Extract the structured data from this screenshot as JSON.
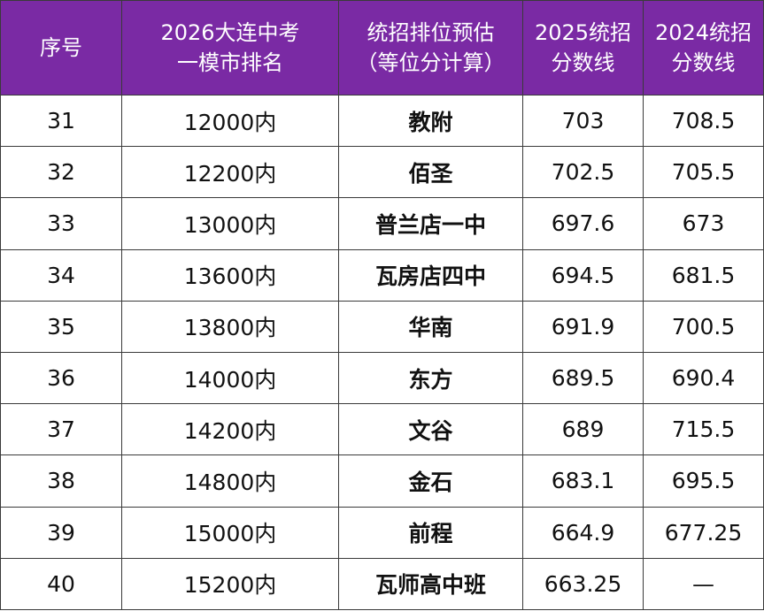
{
  "table": {
    "headers": [
      [
        "序号"
      ],
      [
        "2026大连中考",
        "一模市排名"
      ],
      [
        "统招排位预估",
        "（等位分计算）"
      ],
      [
        "2025统招",
        "分数线"
      ],
      [
        "2024统招",
        "分数线"
      ]
    ],
    "rows": [
      [
        "31",
        "12000内",
        "教附",
        "703",
        "708.5"
      ],
      [
        "32",
        "12200内",
        "佰圣",
        "702.5",
        "705.5"
      ],
      [
        "33",
        "13000内",
        "普兰店一中",
        "697.6",
        "673"
      ],
      [
        "34",
        "13600内",
        "瓦房店四中",
        "694.5",
        "681.5"
      ],
      [
        "35",
        "13800内",
        "华南",
        "691.9",
        "700.5"
      ],
      [
        "36",
        "14000内",
        "东方",
        "689.5",
        "690.4"
      ],
      [
        "37",
        "14200内",
        "文谷",
        "689",
        "715.5"
      ],
      [
        "38",
        "14800内",
        "金石",
        "683.1",
        "695.5"
      ],
      [
        "39",
        "15000内",
        "前程",
        "664.9",
        "677.25"
      ],
      [
        "40",
        "15200内",
        "瓦师高中班",
        "663.25",
        "—"
      ]
    ]
  },
  "colors": {
    "header_bg": "#7a2aa4",
    "header_text": "#ffffff",
    "border": "#3a3a3a"
  }
}
